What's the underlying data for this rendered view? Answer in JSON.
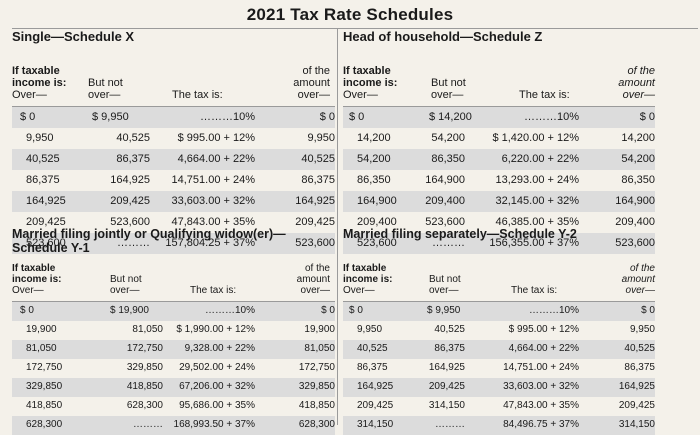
{
  "page": {
    "title": "2021 Tax Rate Schedules"
  },
  "headers": {
    "if_taxable": "If taxable",
    "income_is": "income is:",
    "over": "Over—",
    "but_not": "But not",
    "over2": "over—",
    "the_tax_is": "The tax is:",
    "of_the": "of the",
    "amount": "amount",
    "over3": "over—"
  },
  "schedules": [
    {
      "title": "Single—Schedule X",
      "rows": [
        [
          "$      0",
          "$  9,950",
          "………10%",
          "$        0"
        ],
        [
          "9,950",
          "40,525",
          "$     995.00 + 12%",
          "9,950"
        ],
        [
          "40,525",
          "86,375",
          "4,664.00 + 22%",
          "40,525"
        ],
        [
          "86,375",
          "164,925",
          "14,751.00 + 24%",
          "86,375"
        ],
        [
          "164,925",
          "209,425",
          "33,603.00 + 32%",
          "164,925"
        ],
        [
          "209,425",
          "523,600",
          "47,843.00 + 35%",
          "209,425"
        ],
        [
          "523,600",
          "………",
          "157,804.25 + 37%",
          "523,600"
        ]
      ]
    },
    {
      "title": "Head of household—Schedule Z",
      "rows": [
        [
          "$      0",
          "$ 14,200",
          "………10%",
          "$        0"
        ],
        [
          "14,200",
          "54,200",
          "$  1,420.00 + 12%",
          "14,200"
        ],
        [
          "54,200",
          "86,350",
          "6,220.00 + 22%",
          "54,200"
        ],
        [
          "86,350",
          "164,900",
          "13,293.00 + 24%",
          "86,350"
        ],
        [
          "164,900",
          "209,400",
          "32,145.00 + 32%",
          "164,900"
        ],
        [
          "209,400",
          "523,600",
          "46,385.00 + 35%",
          "209,400"
        ],
        [
          "523,600",
          "………",
          "156,355.00 + 37%",
          "523,600"
        ]
      ]
    },
    {
      "title": "Married filing jointly or Qualifying widow(er)—",
      "title2": "Schedule Y-1",
      "rows": [
        [
          "$      0",
          "$ 19,900",
          "………10%",
          "$        0"
        ],
        [
          "19,900",
          "81,050",
          "$   1,990.00 + 12%",
          "19,900"
        ],
        [
          "81,050",
          "172,750",
          "9,328.00 + 22%",
          "81,050"
        ],
        [
          "172,750",
          "329,850",
          "29,502.00 + 24%",
          "172,750"
        ],
        [
          "329,850",
          "418,850",
          "67,206.00 + 32%",
          "329,850"
        ],
        [
          "418,850",
          "628,300",
          "95,686.00 + 35%",
          "418,850"
        ],
        [
          "628,300",
          "………",
          "168,993.50 + 37%",
          "628,300"
        ]
      ]
    },
    {
      "title": "Married filing separately—Schedule Y-2",
      "rows": [
        [
          "$      0",
          "$  9,950",
          "………10%",
          "$        0"
        ],
        [
          "9,950",
          "40,525",
          "$     995.00 + 12%",
          "9,950"
        ],
        [
          "40,525",
          "86,375",
          "4,664.00 + 22%",
          "40,525"
        ],
        [
          "86,375",
          "164,925",
          "14,751.00 + 24%",
          "86,375"
        ],
        [
          "164,925",
          "209,425",
          "33,603.00 + 32%",
          "164,925"
        ],
        [
          "209,425",
          "314,150",
          "47,843.00 + 35%",
          "209,425"
        ],
        [
          "314,150",
          "………",
          "84,496.75 + 37%",
          "314,150"
        ]
      ]
    }
  ]
}
